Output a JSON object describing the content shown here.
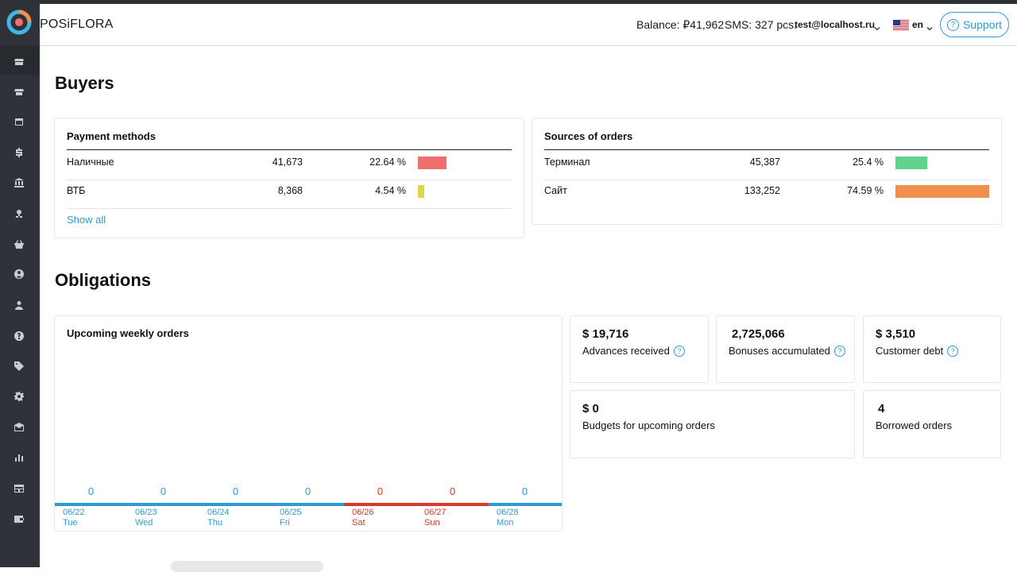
{
  "header": {
    "brand": "POSiFLORA",
    "balance": "Balance: ₽41,962",
    "sms": "SMS: 327 pcs.",
    "email": "test@localhost.ru",
    "lang": "en",
    "support_label": "Support"
  },
  "sidebar": {
    "icons": [
      "store-icon",
      "shop-icon",
      "calendar-icon",
      "dollar-icon",
      "bank-icon",
      "flower-icon",
      "basket-icon",
      "user-circle-icon",
      "user-icon",
      "help-icon",
      "tag-icon",
      "gear-icon",
      "mail-icon",
      "chart-icon",
      "table-icon",
      "wallet-icon"
    ]
  },
  "buyers": {
    "title": "Buyers",
    "payment_methods": {
      "title": "Payment methods",
      "rows": [
        {
          "name": "Наличные",
          "value": "41,673",
          "percent": "22.64 %",
          "share": 22.64,
          "color": "#ef6f6c"
        },
        {
          "name": "ВТБ",
          "value": "8,368",
          "percent": "4.54 %",
          "share": 4.54,
          "color": "#e0d54a"
        }
      ],
      "show_all": "Show all"
    },
    "sources": {
      "title": "Sources of orders",
      "rows": [
        {
          "name": "Терминал",
          "value": "45,387",
          "percent": "25.4 %",
          "share": 25.4,
          "color": "#5fd48e"
        },
        {
          "name": "Сайт",
          "value": "133,252",
          "percent": "74.59 %",
          "share": 74.59,
          "color": "#f0904c"
        }
      ]
    }
  },
  "obligations": {
    "title": "Obligations",
    "weekly": {
      "title": "Upcoming weekly orders",
      "days": [
        {
          "count": "0",
          "date": "06/22",
          "day": "Tue",
          "weekend": false
        },
        {
          "count": "0",
          "date": "06/23",
          "day": "Wed",
          "weekend": false
        },
        {
          "count": "0",
          "date": "06/24",
          "day": "Thu",
          "weekend": false
        },
        {
          "count": "0",
          "date": "06/25",
          "day": "Fri",
          "weekend": false
        },
        {
          "count": "0",
          "date": "06/26",
          "day": "Sat",
          "weekend": true
        },
        {
          "count": "0",
          "date": "06/27",
          "day": "Sun",
          "weekend": true
        },
        {
          "count": "0",
          "date": "06/28",
          "day": "Mon",
          "weekend": false
        }
      ]
    },
    "stats": {
      "advances": {
        "value": "$ 19,716",
        "label": "Advances received"
      },
      "bonuses": {
        "value": "2,725,066",
        "label": "Bonuses accumulated"
      },
      "debt": {
        "value": "$ 3,510",
        "label": "Customer debt"
      },
      "budgets": {
        "value": "$ 0",
        "label": "Budgets for upcoming orders"
      },
      "borrowed": {
        "value": "4",
        "label": "Borrowed orders"
      }
    }
  },
  "colors": {
    "accent": "#2e9bd6",
    "weekday": "#2e9bd6",
    "weekend": "#d9382b"
  }
}
